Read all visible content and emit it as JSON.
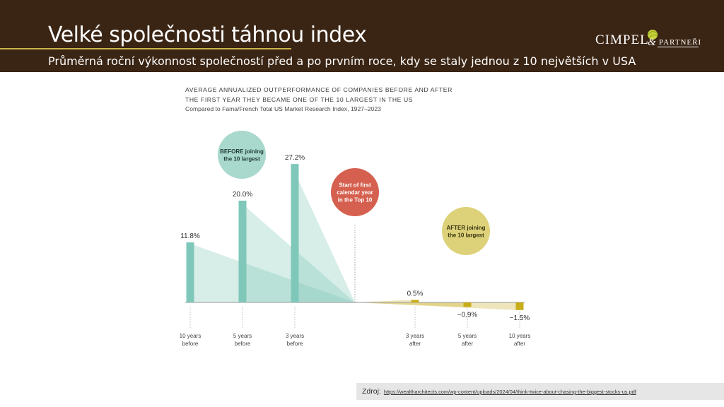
{
  "slide": {
    "title": "Velké společnosti táhnou index",
    "subtitle": "Průměrná roční výkonnost společností před a po prvním roce, kdy se staly jednou z 10 největších v USA",
    "logo": {
      "name": "CIMPEL",
      "amp": "&",
      "partner": "PARTNEŘI"
    },
    "source_label": "Zdroj:",
    "source_url": "https://wealtharchitects.com/wp-content/uploads/2024/04/think-twice-about-chasing-the-biggest-stocks-us.pdf"
  },
  "chart_data": {
    "type": "bar",
    "title_line1": "AVERAGE ANNUALIZED OUTPERFORMANCE OF COMPANIES BEFORE AND AFTER",
    "title_line2": "THE FIRST YEAR THEY BECAME ONE OF THE 10 LARGEST IN THE US",
    "subtitle": "Compared to Fama/French Total US Market Research Index, 1927–2023",
    "categories": [
      [
        "10 years",
        "before"
      ],
      [
        "5 years",
        "before"
      ],
      [
        "3 years",
        "before"
      ],
      [
        "3 years",
        "after"
      ],
      [
        "5 years",
        "after"
      ],
      [
        "10 years",
        "after"
      ]
    ],
    "x_years": [
      -10,
      -5,
      -3,
      3,
      5,
      10
    ],
    "values": [
      11.8,
      20.0,
      27.2,
      0.5,
      -0.9,
      -1.5
    ],
    "value_labels": [
      "11.8%",
      "20.0%",
      "27.2%",
      "0.5%",
      "−0.9%",
      "−1.5%"
    ],
    "colors": {
      "before": "#7fc8b9",
      "after": "#c8ad1a",
      "start": "#d5604f",
      "before_bubble": "#a9d8cd",
      "after_bubble": "#ddd27a"
    },
    "annotations": {
      "before": [
        "BEFORE joining",
        "the 10 largest"
      ],
      "start": [
        "Start of first",
        "calendar year",
        "in the Top 10"
      ],
      "after": [
        "AFTER joining",
        "the 10 largest"
      ]
    }
  }
}
